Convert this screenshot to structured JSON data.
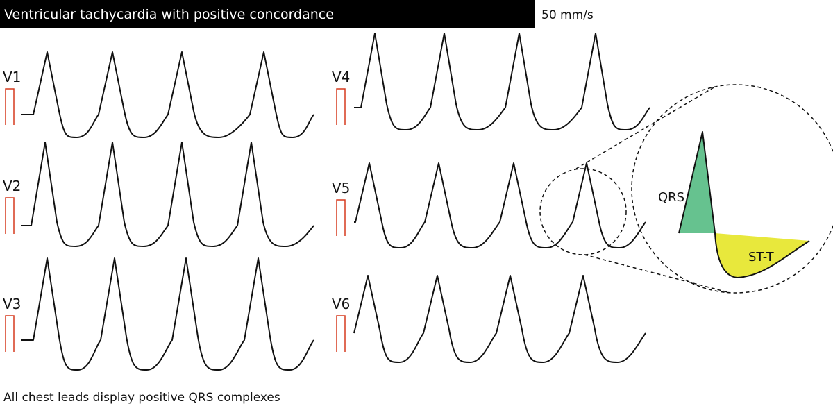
{
  "header": {
    "title": "Ventricular tachycardia with positive concordance",
    "speed": "50 mm/s"
  },
  "leads": [
    "V1",
    "V2",
    "V3",
    "V4",
    "V5",
    "V6"
  ],
  "zoom": {
    "qrs_label": "QRS",
    "st_t_label": "ST-T"
  },
  "caption": "All chest leads display positive QRS complexes"
}
